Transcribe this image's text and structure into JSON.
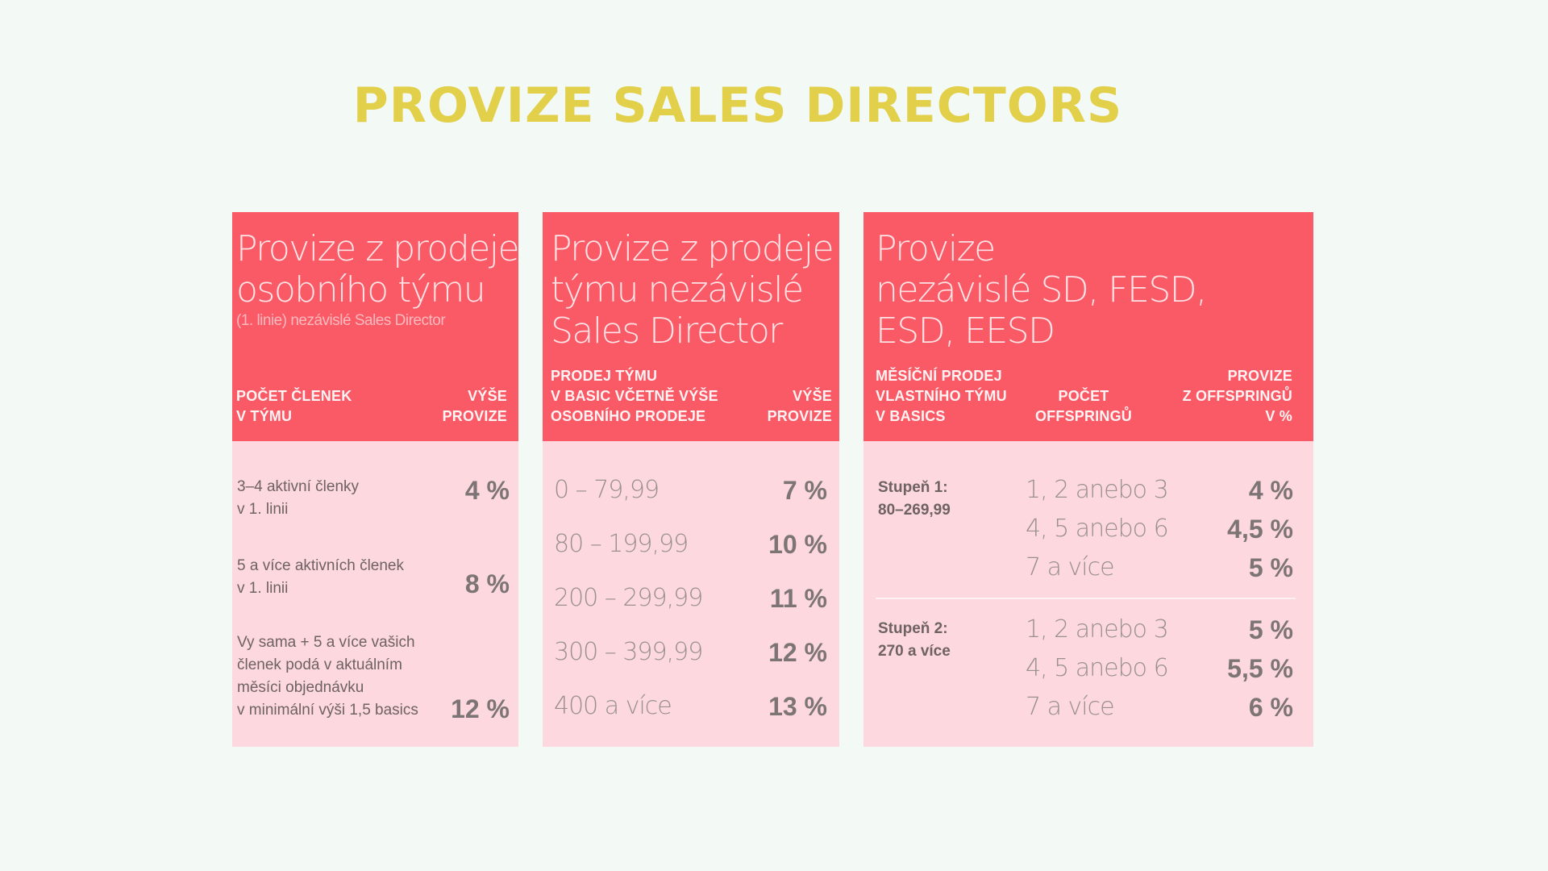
{
  "title": "PROVIZE SALES DIRECTORS",
  "card1": {
    "title_lines": [
      "Provize z prodeje",
      "osobního týmu"
    ],
    "subtitle": "(1. linie) nezávislé Sales Director",
    "col_left": [
      "POČET ČLENEK",
      "V TÝMU"
    ],
    "col_right": [
      "VÝŠE",
      "PROVIZE"
    ],
    "rows": [
      {
        "desc": [
          "3–4 aktivní členky",
          "v 1. linii"
        ],
        "pct": "4 %"
      },
      {
        "desc": [
          "5 a více aktivních členek",
          "v 1. linii"
        ],
        "pct": "8 %"
      },
      {
        "desc": [
          "Vy sama + 5 a více vašich",
          "členek podá v aktuálním",
          "měsíci objednávku",
          "v minimální výši 1,5 basics"
        ],
        "pct": "12 %"
      }
    ]
  },
  "card2": {
    "title_lines": [
      "Provize z prodeje",
      "týmu nezávislé",
      "Sales Director"
    ],
    "col_left": [
      "PRODEJ TÝMU",
      "V BASIC VČETNĚ VÝŠE",
      "OSOBNÍHO PRODEJE"
    ],
    "col_right": [
      "VÝŠE",
      "PROVIZE"
    ],
    "rows": [
      {
        "range": "0 – 79,99",
        "pct": "7 %"
      },
      {
        "range": "80 – 199,99",
        "pct": "10 %"
      },
      {
        "range": "200 – 299,99",
        "pct": "11 %"
      },
      {
        "range": "300 – 399,99",
        "pct": "12 %"
      },
      {
        "range": "400 a více",
        "pct": "13 %"
      }
    ]
  },
  "card3": {
    "title_lines": [
      "Provize",
      "nezávislé SD, FESD,",
      "ESD, EESD"
    ],
    "col_left": [
      "MĚSÍČNÍ PRODEJ",
      "VLASTNÍHO TÝMU",
      "V BASICS"
    ],
    "col_mid": [
      "POČET",
      "OFFSPRINGŮ"
    ],
    "col_right": [
      "PROVIZE",
      "Z OFFSPRINGŮ",
      "V %"
    ],
    "stages": [
      {
        "label": [
          "Stupeň 1:",
          "80–269,99"
        ],
        "rows": [
          {
            "count": "1, 2 anebo 3",
            "pct": "4 %"
          },
          {
            "count": "4, 5 anebo 6",
            "pct": "4,5 %"
          },
          {
            "count": "7 a více",
            "pct": "5 %"
          }
        ]
      },
      {
        "label": [
          "Stupeň 2:",
          "270 a více"
        ],
        "rows": [
          {
            "count": "1, 2 anebo 3",
            "pct": "5 %"
          },
          {
            "count": "4, 5 anebo 6",
            "pct": "5,5 %"
          },
          {
            "count": "7 a více",
            "pct": "6 %"
          }
        ]
      }
    ]
  }
}
